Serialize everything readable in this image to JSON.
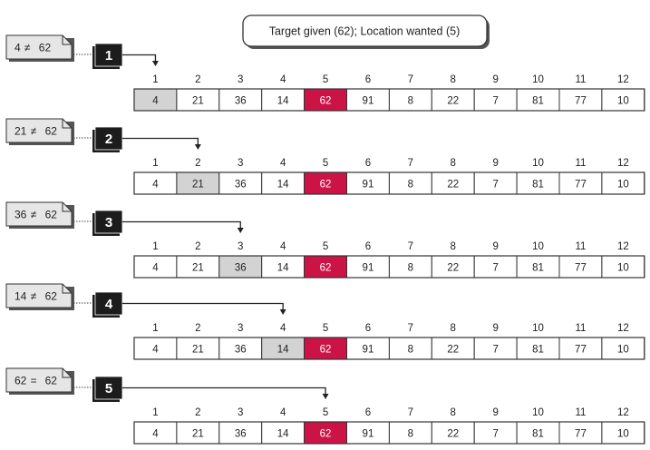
{
  "header": {
    "label": "Target given (62);   Location wanted (5)"
  },
  "array": {
    "indices": [
      "1",
      "2",
      "3",
      "4",
      "5",
      "6",
      "7",
      "8",
      "9",
      "10",
      "11",
      "12"
    ],
    "values": [
      "4",
      "21",
      "36",
      "14",
      "62",
      "91",
      "8",
      "22",
      "7",
      "81",
      "77",
      "10"
    ],
    "target_position": 5
  },
  "steps": [
    {
      "number": "1",
      "left": "4",
      "op": "≠",
      "right": "62",
      "checked_position": 1
    },
    {
      "number": "2",
      "left": "21",
      "op": "≠",
      "right": "62",
      "checked_position": 2
    },
    {
      "number": "3",
      "left": "36",
      "op": "≠",
      "right": "62",
      "checked_position": 3
    },
    {
      "number": "4",
      "left": "14",
      "op": "≠",
      "right": "62",
      "checked_position": 4
    },
    {
      "number": "5",
      "left": "62",
      "op": "=",
      "right": "62",
      "checked_position": 5
    }
  ],
  "colors": {
    "target_cell": "#cc1346",
    "checked_cell": "#d3d3d3",
    "note_fill": "#e6e6e6",
    "step_box": "#1c1c1c",
    "border": "#333333"
  }
}
